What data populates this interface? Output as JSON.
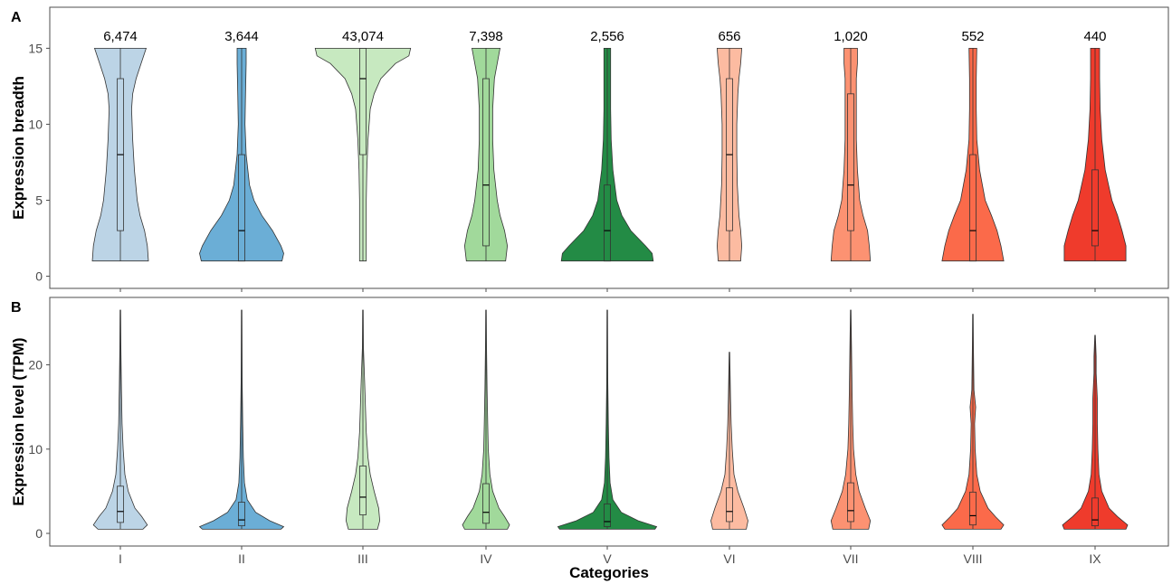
{
  "chart_data": [
    {
      "panel_label": "A",
      "type": "violin",
      "ylabel": "Expression breadth",
      "xlabel": "",
      "ylim": [
        -0.8,
        17.7
      ],
      "yticks": [
        0,
        5,
        10,
        15
      ],
      "grid": false,
      "categories": [
        "I",
        "II",
        "III",
        "IV",
        "V",
        "VI",
        "VII",
        "VIII",
        "IX"
      ],
      "colors": [
        "#bcd4e6",
        "#6baed6",
        "#c7e9c0",
        "#a1d99b",
        "#238b45",
        "#fcbba1",
        "#fc9272",
        "#fb6a4a",
        "#ef3b2c"
      ],
      "counts": [
        "6,474",
        "3,644",
        "43,074",
        "7,398",
        "2,556",
        "656",
        "1,020",
        "552",
        "440"
      ],
      "series": [
        {
          "category": "I",
          "min": 1,
          "q1": 3,
          "median": 8,
          "q3": 13,
          "max": 15,
          "density": [
            [
              1,
              0.5
            ],
            [
              2,
              0.48
            ],
            [
              3,
              0.43
            ],
            [
              4,
              0.35
            ],
            [
              5,
              0.3
            ],
            [
              7,
              0.25
            ],
            [
              9,
              0.22
            ],
            [
              11,
              0.2
            ],
            [
              12,
              0.22
            ],
            [
              13,
              0.28
            ],
            [
              14,
              0.37
            ],
            [
              15,
              0.46
            ]
          ]
        },
        {
          "category": "II",
          "min": 1,
          "q1": 1,
          "median": 3,
          "q3": 8,
          "max": 15,
          "density": [
            [
              1,
              0.72
            ],
            [
              1.5,
              0.75
            ],
            [
              2,
              0.7
            ],
            [
              3,
              0.55
            ],
            [
              4,
              0.36
            ],
            [
              5,
              0.22
            ],
            [
              6,
              0.14
            ],
            [
              8,
              0.08
            ],
            [
              10,
              0.06
            ],
            [
              12,
              0.07
            ],
            [
              14,
              0.08
            ],
            [
              15,
              0.08
            ]
          ]
        },
        {
          "category": "III",
          "min": 1,
          "q1": 8,
          "median": 13,
          "q3": 15,
          "max": 15,
          "density": [
            [
              1,
              0.06
            ],
            [
              3,
              0.06
            ],
            [
              5,
              0.06
            ],
            [
              7,
              0.07
            ],
            [
              9,
              0.09
            ],
            [
              11,
              0.13
            ],
            [
              12,
              0.2
            ],
            [
              13,
              0.32
            ],
            [
              14,
              0.58
            ],
            [
              14.5,
              0.82
            ],
            [
              15,
              0.85
            ]
          ]
        },
        {
          "category": "IV",
          "min": 1,
          "q1": 2,
          "median": 6,
          "q3": 13,
          "max": 15,
          "density": [
            [
              1,
              0.35
            ],
            [
              2,
              0.38
            ],
            [
              3,
              0.33
            ],
            [
              4,
              0.25
            ],
            [
              5,
              0.2
            ],
            [
              7,
              0.14
            ],
            [
              9,
              0.12
            ],
            [
              11,
              0.12
            ],
            [
              13,
              0.15
            ],
            [
              14,
              0.2
            ],
            [
              15,
              0.25
            ]
          ]
        },
        {
          "category": "V",
          "min": 1,
          "q1": 1,
          "median": 3,
          "q3": 6,
          "max": 15,
          "density": [
            [
              1,
              0.82
            ],
            [
              1.5,
              0.8
            ],
            [
              2,
              0.68
            ],
            [
              3,
              0.42
            ],
            [
              4,
              0.26
            ],
            [
              5,
              0.17
            ],
            [
              7,
              0.1
            ],
            [
              9,
              0.07
            ],
            [
              11,
              0.06
            ],
            [
              13,
              0.06
            ],
            [
              15,
              0.06
            ]
          ]
        },
        {
          "category": "VI",
          "min": 1,
          "q1": 3,
          "median": 8,
          "q3": 13,
          "max": 15,
          "density": [
            [
              1,
              0.2
            ],
            [
              2,
              0.22
            ],
            [
              3,
              0.2
            ],
            [
              4,
              0.17
            ],
            [
              6,
              0.14
            ],
            [
              8,
              0.13
            ],
            [
              10,
              0.13
            ],
            [
              12,
              0.15
            ],
            [
              13,
              0.17
            ],
            [
              14,
              0.2
            ],
            [
              15,
              0.22
            ]
          ]
        },
        {
          "category": "VII",
          "min": 1,
          "q1": 3,
          "median": 6,
          "q3": 12,
          "max": 15,
          "density": [
            [
              1,
              0.35
            ],
            [
              2,
              0.33
            ],
            [
              3,
              0.3
            ],
            [
              4,
              0.22
            ],
            [
              5,
              0.16
            ],
            [
              7,
              0.12
            ],
            [
              9,
              0.1
            ],
            [
              11,
              0.1
            ],
            [
              13,
              0.1
            ],
            [
              14,
              0.12
            ],
            [
              15,
              0.12
            ]
          ]
        },
        {
          "category": "VIII",
          "min": 1,
          "q1": 1,
          "median": 3,
          "q3": 8,
          "max": 15,
          "density": [
            [
              1,
              0.55
            ],
            [
              2,
              0.5
            ],
            [
              3,
              0.43
            ],
            [
              4,
              0.33
            ],
            [
              5,
              0.22
            ],
            [
              7,
              0.12
            ],
            [
              9,
              0.07
            ],
            [
              11,
              0.06
            ],
            [
              13,
              0.06
            ],
            [
              15,
              0.07
            ]
          ]
        },
        {
          "category": "IX",
          "min": 1,
          "q1": 2,
          "median": 3,
          "q3": 7,
          "max": 15,
          "density": [
            [
              1,
              0.55
            ],
            [
              2,
              0.55
            ],
            [
              3,
              0.48
            ],
            [
              4,
              0.4
            ],
            [
              5,
              0.3
            ],
            [
              7,
              0.18
            ],
            [
              9,
              0.12
            ],
            [
              11,
              0.09
            ],
            [
              13,
              0.08
            ],
            [
              15,
              0.08
            ]
          ]
        }
      ]
    },
    {
      "panel_label": "B",
      "type": "violin",
      "ylabel": "Expression level (TPM)",
      "xlabel": "Categories",
      "ylim": [
        -1.5,
        28
      ],
      "yticks": [
        0,
        10,
        20
      ],
      "grid": false,
      "categories": [
        "I",
        "II",
        "III",
        "IV",
        "V",
        "VI",
        "VII",
        "VIII",
        "IX"
      ],
      "colors": [
        "#bcd4e6",
        "#6baed6",
        "#c7e9c0",
        "#a1d99b",
        "#238b45",
        "#fcbba1",
        "#fc9272",
        "#fb6a4a",
        "#ef3b2c"
      ],
      "series": [
        {
          "category": "I",
          "min": 0.5,
          "q1": 1.3,
          "median": 2.6,
          "q3": 5.6,
          "max": 26.5,
          "density": [
            [
              0.5,
              0.4
            ],
            [
              1,
              0.48
            ],
            [
              2,
              0.38
            ],
            [
              3,
              0.26
            ],
            [
              5,
              0.14
            ],
            [
              7,
              0.08
            ],
            [
              10,
              0.05
            ],
            [
              13,
              0.03
            ],
            [
              17,
              0.02
            ],
            [
              22,
              0.01
            ],
            [
              26.5,
              0.005
            ]
          ]
        },
        {
          "category": "II",
          "min": 0.5,
          "q1": 0.9,
          "median": 1.6,
          "q3": 3.7,
          "max": 26.5,
          "density": [
            [
              0.5,
              0.7
            ],
            [
              0.8,
              0.75
            ],
            [
              1.5,
              0.5
            ],
            [
              2.5,
              0.25
            ],
            [
              4,
              0.1
            ],
            [
              6,
              0.05
            ],
            [
              9,
              0.03
            ],
            [
              13,
              0.02
            ],
            [
              18,
              0.01
            ],
            [
              26.5,
              0.005
            ]
          ]
        },
        {
          "category": "III",
          "min": 0.5,
          "q1": 2.2,
          "median": 4.3,
          "q3": 8,
          "max": 26.5,
          "density": [
            [
              0.5,
              0.26
            ],
            [
              1.5,
              0.3
            ],
            [
              3,
              0.28
            ],
            [
              5,
              0.2
            ],
            [
              7,
              0.13
            ],
            [
              9,
              0.09
            ],
            [
              12,
              0.06
            ],
            [
              15,
              0.045
            ],
            [
              18,
              0.03
            ],
            [
              22,
              0.01
            ],
            [
              26.5,
              0.005
            ]
          ]
        },
        {
          "category": "IV",
          "min": 0.5,
          "q1": 1.2,
          "median": 2.5,
          "q3": 5.9,
          "max": 26.5,
          "density": [
            [
              0.5,
              0.38
            ],
            [
              1,
              0.42
            ],
            [
              2,
              0.33
            ],
            [
              3,
              0.23
            ],
            [
              5,
              0.12
            ],
            [
              7,
              0.07
            ],
            [
              10,
              0.04
            ],
            [
              13,
              0.03
            ],
            [
              17,
              0.02
            ],
            [
              22,
              0.01
            ],
            [
              26.5,
              0.005
            ]
          ]
        },
        {
          "category": "V",
          "min": 0.5,
          "q1": 0.8,
          "median": 1.4,
          "q3": 3.5,
          "max": 26.5,
          "density": [
            [
              0.5,
              0.85
            ],
            [
              0.8,
              0.88
            ],
            [
              1.5,
              0.55
            ],
            [
              2.5,
              0.25
            ],
            [
              4,
              0.1
            ],
            [
              6,
              0.05
            ],
            [
              9,
              0.03
            ],
            [
              13,
              0.02
            ],
            [
              18,
              0.01
            ],
            [
              26.5,
              0.005
            ]
          ]
        },
        {
          "category": "VI",
          "min": 0.5,
          "q1": 1.4,
          "median": 2.6,
          "q3": 5.4,
          "max": 21.5,
          "density": [
            [
              0.5,
              0.3
            ],
            [
              1.5,
              0.33
            ],
            [
              3,
              0.26
            ],
            [
              5,
              0.15
            ],
            [
              7,
              0.08
            ],
            [
              10,
              0.05
            ],
            [
              13,
              0.03
            ],
            [
              16,
              0.02
            ],
            [
              21.5,
              0.005
            ]
          ]
        },
        {
          "category": "VII",
          "min": 0.5,
          "q1": 1.4,
          "median": 2.7,
          "q3": 6,
          "max": 26.5,
          "density": [
            [
              0.5,
              0.32
            ],
            [
              1.5,
              0.35
            ],
            [
              3,
              0.26
            ],
            [
              5,
              0.15
            ],
            [
              7,
              0.09
            ],
            [
              10,
              0.05
            ],
            [
              13,
              0.035
            ],
            [
              17,
              0.025
            ],
            [
              22,
              0.015
            ],
            [
              26.5,
              0.005
            ]
          ]
        },
        {
          "category": "VIII",
          "min": 0.5,
          "q1": 1,
          "median": 2.1,
          "q3": 4.9,
          "max": 26,
          "density": [
            [
              0.5,
              0.5
            ],
            [
              1,
              0.55
            ],
            [
              2,
              0.4
            ],
            [
              3,
              0.27
            ],
            [
              5,
              0.13
            ],
            [
              7,
              0.07
            ],
            [
              10,
              0.04
            ],
            [
              13,
              0.03
            ],
            [
              15,
              0.05
            ],
            [
              17,
              0.02
            ],
            [
              22,
              0.01
            ],
            [
              26,
              0.005
            ]
          ]
        },
        {
          "category": "IX",
          "min": 0.5,
          "q1": 0.9,
          "median": 1.6,
          "q3": 4.2,
          "max": 23.5,
          "density": [
            [
              0.5,
              0.55
            ],
            [
              1,
              0.58
            ],
            [
              2,
              0.4
            ],
            [
              3,
              0.25
            ],
            [
              5,
              0.12
            ],
            [
              7,
              0.07
            ],
            [
              10,
              0.05
            ],
            [
              13,
              0.04
            ],
            [
              16,
              0.04
            ],
            [
              19,
              0.02
            ],
            [
              21,
              0.02
            ],
            [
              23.5,
              0.005
            ]
          ]
        }
      ]
    }
  ]
}
